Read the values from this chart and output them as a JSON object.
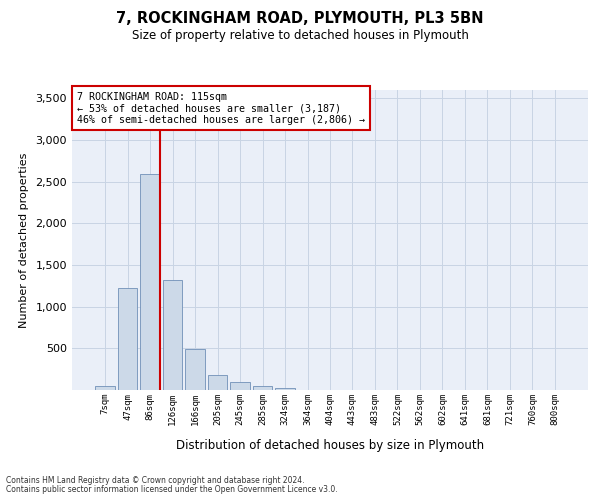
{
  "title1": "7, ROCKINGHAM ROAD, PLYMOUTH, PL3 5BN",
  "title2": "Size of property relative to detached houses in Plymouth",
  "xlabel": "Distribution of detached houses by size in Plymouth",
  "ylabel": "Number of detached properties",
  "bar_color": "#ccd9e8",
  "bar_edge_color": "#7090b8",
  "bar_values": [
    50,
    1220,
    2590,
    1320,
    490,
    185,
    100,
    50,
    30,
    5,
    0,
    0,
    0,
    0,
    0,
    0,
    0,
    0,
    0,
    0,
    0
  ],
  "bar_labels": [
    "7sqm",
    "47sqm",
    "86sqm",
    "126sqm",
    "166sqm",
    "205sqm",
    "245sqm",
    "285sqm",
    "324sqm",
    "364sqm",
    "404sqm",
    "443sqm",
    "483sqm",
    "522sqm",
    "562sqm",
    "602sqm",
    "641sqm",
    "681sqm",
    "721sqm",
    "760sqm",
    "800sqm"
  ],
  "ylim_max": 3600,
  "yticks": [
    0,
    500,
    1000,
    1500,
    2000,
    2500,
    3000,
    3500
  ],
  "vline_bar_idx": 2,
  "annotation_line1": "7 ROCKINGHAM ROAD: 115sqm",
  "annotation_line2": "← 53% of detached houses are smaller (3,187)",
  "annotation_line3": "46% of semi-detached houses are larger (2,806) →",
  "vline_color": "#cc0000",
  "grid_color": "#c8d4e4",
  "bg_color": "#eaeff8",
  "footnote1": "Contains HM Land Registry data © Crown copyright and database right 2024.",
  "footnote2": "Contains public sector information licensed under the Open Government Licence v3.0."
}
